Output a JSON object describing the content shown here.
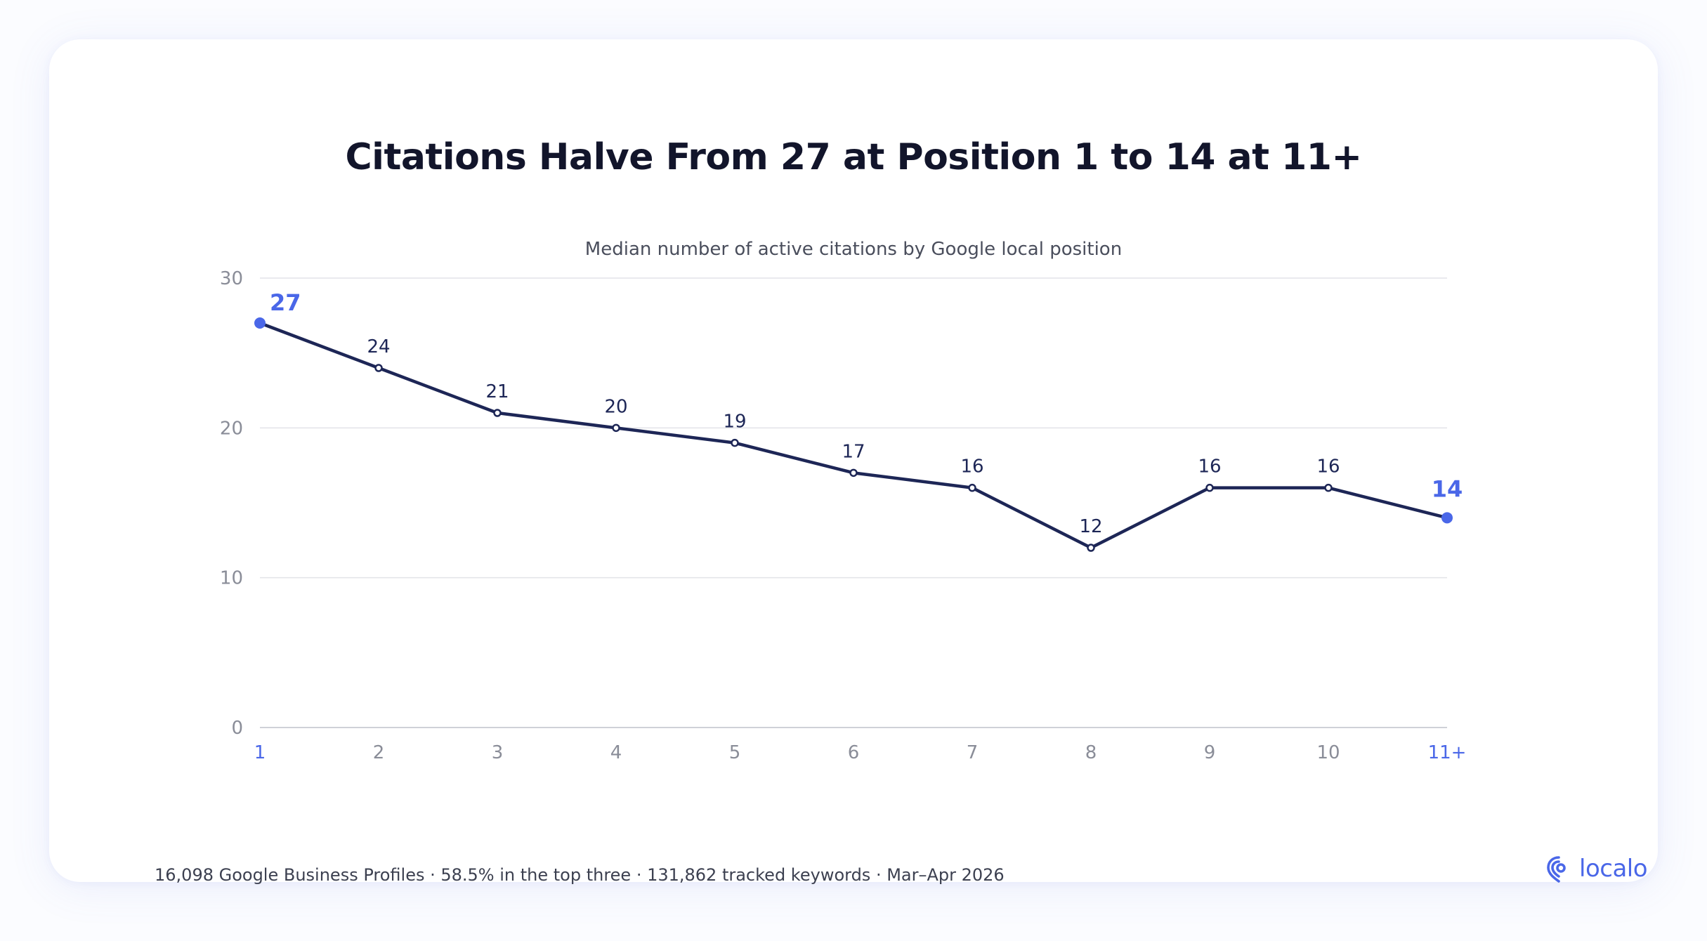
{
  "header": {
    "title": "Citations Halve From 27 at Position 1 to 14 at 11+",
    "subtitle": "Median number of active citations by Google local position"
  },
  "footer": {
    "note": "16,098 Google Business Profiles · 58.5% in the top three · 131,862 tracked keywords · Mar–Apr 2026",
    "brand": "localo"
  },
  "colors": {
    "line": "#1d2656",
    "accent": "#4a67e8",
    "grid": "#e2e3e8",
    "axis_text": "#8a8d98"
  },
  "icons": {
    "brand_logo": "localo-location-pin-icon"
  },
  "chart_data": {
    "type": "line",
    "title": "Citations Halve From 27 at Position 1 to 14 at 11+",
    "subtitle": "Median number of active citations by Google local position",
    "xlabel": "",
    "ylabel": "",
    "categories": [
      "1",
      "2",
      "3",
      "4",
      "5",
      "6",
      "7",
      "8",
      "9",
      "10",
      "11+"
    ],
    "series": [
      {
        "values": [
          27,
          24,
          21,
          20,
          19,
          17,
          16,
          12,
          16,
          16,
          14
        ]
      }
    ],
    "highlighted_categories": [
      "1",
      "11+"
    ],
    "ylim": [
      0,
      30
    ],
    "yticks": [
      0,
      10,
      20,
      30
    ],
    "grid": true,
    "legend": "none",
    "data_labels": true
  }
}
